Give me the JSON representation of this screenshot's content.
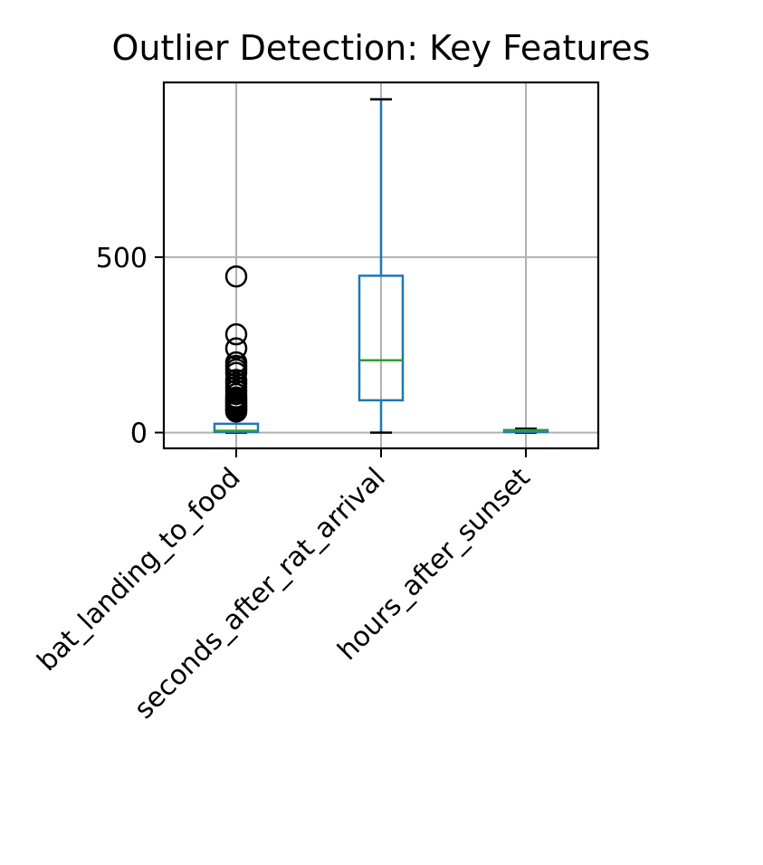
{
  "chart_data": {
    "type": "box",
    "title": "Outlier Detection: Key Features",
    "xlabel": "",
    "ylabel": "",
    "categories": [
      "bat_landing_to_food",
      "seconds_after_rat_arrival",
      "hours_after_sunset"
    ],
    "yticks": [
      0,
      500
    ],
    "ylim": [
      -45,
      998
    ],
    "grid": true,
    "boxes": [
      {
        "name": "bat_landing_to_food",
        "whisker_low": 0,
        "q1": 2,
        "median": 5,
        "q3": 25,
        "whisker_high": 55,
        "outliers": [
          445,
          280,
          240,
          200,
          190,
          180,
          170,
          150,
          140,
          130,
          120,
          110,
          100,
          95,
          90,
          85,
          80,
          75,
          70,
          65,
          60
        ]
      },
      {
        "name": "seconds_after_rat_arrival",
        "whisker_low": 0,
        "q1": 92,
        "median": 206,
        "q3": 447,
        "whisker_high": 950,
        "outliers": []
      },
      {
        "name": "hours_after_sunset",
        "whisker_low": 0,
        "q1": 2,
        "median": 5,
        "q3": 7,
        "whisker_high": 11,
        "outliers": []
      }
    ],
    "colors": {
      "box": "#1f77b4",
      "median": "#2ca02c",
      "cap": "#000000",
      "outlier": "#000000",
      "grid": "#b0b0b0"
    }
  }
}
